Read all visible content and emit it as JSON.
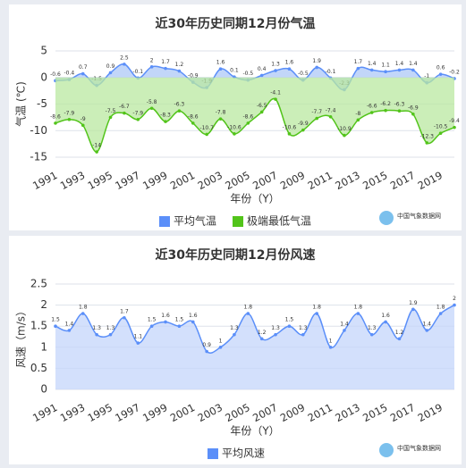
{
  "chart_data": [
    {
      "type": "line",
      "title": "近30年历史同期12月份气温",
      "y_label": "气温 (℃)",
      "x_label": "年份（Y）",
      "categories": [
        "1991",
        null,
        "1993",
        null,
        "1995",
        null,
        "1997",
        null,
        "1999",
        null,
        "2001",
        null,
        "2003",
        null,
        "2005",
        null,
        "2007",
        null,
        "2009",
        null,
        "2011",
        null,
        "2013",
        null,
        "2015",
        null,
        "2017",
        null,
        "2019",
        null
      ],
      "series": [
        {
          "name": "平均气温",
          "color": "#5b8ff9",
          "area": "#aec8f7",
          "values": [
            -0.6,
            -0.4,
            0.7,
            -1.5,
            0.9,
            2.5,
            -0.1,
            2.0,
            1.7,
            1.2,
            -0.9,
            -1.9,
            1.6,
            0.1,
            -0.5,
            0.4,
            1.3,
            1.6,
            -0.5,
            1.9,
            -0.1,
            -2.3,
            1.7,
            1.4,
            1.1,
            1.4,
            1.4,
            -1.0,
            0.6,
            -0.2
          ]
        },
        {
          "name": "极端最低气温",
          "color": "#52c41a",
          "area": "#b9e8a0",
          "values": [
            -8.6,
            -7.9,
            -9.0,
            -14.0,
            -7.5,
            -6.7,
            -7.9,
            -5.8,
            -8.3,
            -6.3,
            -8.6,
            -10.7,
            -7.8,
            -10.6,
            -8.6,
            -6.5,
            -4.1,
            -10.6,
            -9.9,
            -7.7,
            -7.4,
            -10.9,
            -8.0,
            -6.6,
            -6.2,
            -6.3,
            -6.9,
            -12.3,
            -10.5,
            -9.4
          ]
        }
      ],
      "ylim": [
        -15,
        5
      ],
      "yticks": [
        -15,
        -10,
        -5,
        0,
        5
      ],
      "grid": true
    },
    {
      "type": "line",
      "title": "近30年历史同期12月份风速",
      "y_label": "风速（m/s）",
      "x_label": "年份（Y）",
      "categories": [
        "1991",
        null,
        "1993",
        null,
        "1995",
        null,
        "1997",
        null,
        "1999",
        null,
        "2001",
        null,
        "2003",
        null,
        "2005",
        null,
        "2007",
        null,
        "2009",
        null,
        "2011",
        null,
        "2013",
        null,
        "2015",
        null,
        "2017",
        null,
        "2019",
        null
      ],
      "series": [
        {
          "name": "平均风速",
          "color": "#5b8ff9",
          "area": "#c4d6fb",
          "values": [
            1.5,
            1.4,
            1.8,
            1.3,
            1.3,
            1.7,
            1.1,
            1.5,
            1.6,
            1.5,
            1.6,
            0.9,
            1.0,
            1.3,
            1.8,
            1.2,
            1.3,
            1.5,
            1.3,
            1.8,
            1.0,
            1.4,
            1.8,
            1.3,
            1.6,
            1.2,
            1.9,
            1.4,
            1.8,
            2.0
          ]
        }
      ],
      "ylim": [
        0,
        2.5
      ],
      "yticks": [
        0,
        0.5,
        1,
        1.5,
        2,
        2.5
      ],
      "grid": true
    }
  ],
  "watermark": "中国气象数据网"
}
